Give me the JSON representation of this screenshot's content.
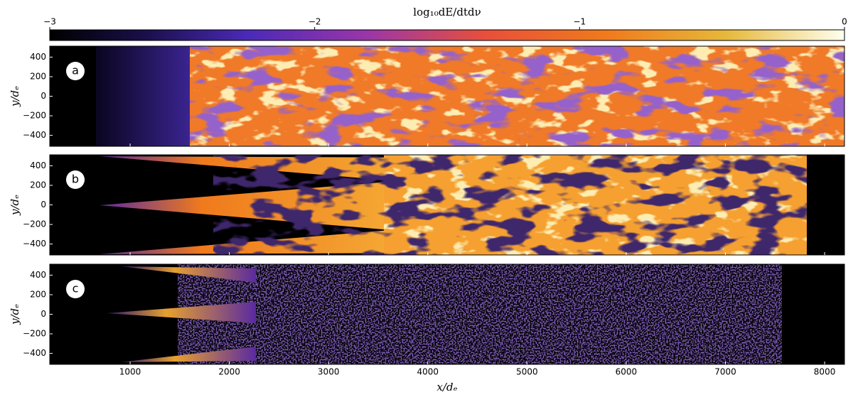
{
  "chart_data": {
    "type": "heatmap",
    "panels": [
      {
        "label": "a"
      },
      {
        "label": "b"
      },
      {
        "label": "c"
      }
    ],
    "xlabel": "x/dₑ",
    "ylabel": "y/dₑ",
    "xlim": [
      190,
      8200
    ],
    "xticks": [
      1000,
      2000,
      3000,
      4000,
      5000,
      6000,
      7000,
      8000
    ],
    "ylim": [
      -512,
      512
    ],
    "yticks": [
      400,
      200,
      0,
      {
        "value": -200,
        "label": "−200"
      },
      {
        "value": -400,
        "label": "−400"
      }
    ],
    "colorbar": {
      "label": "log₁₀dE/dtdν",
      "lim": [
        -3,
        0
      ],
      "ticks": [
        {
          "value": -3,
          "label": "−3"
        },
        {
          "value": -2,
          "label": "−2"
        },
        {
          "value": -1,
          "label": "−1"
        },
        0
      ]
    }
  }
}
